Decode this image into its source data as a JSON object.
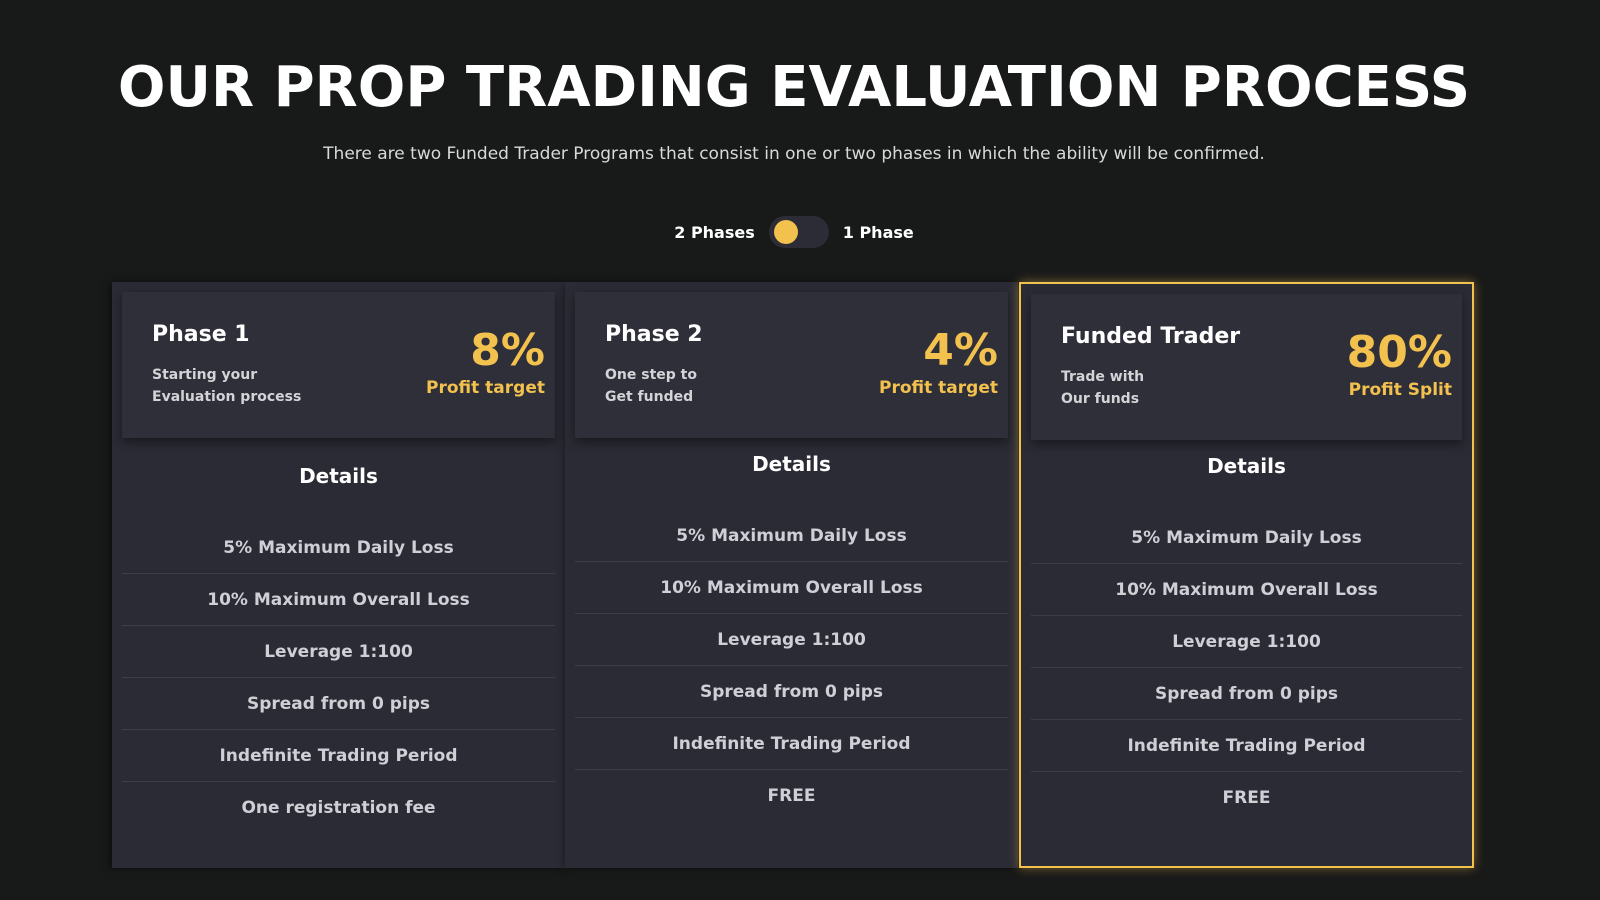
{
  "header": {
    "title": "OUR PROP TRADING EVALUATION PROCESS",
    "subtitle": "There are two Funded Trader Programs that consist in one or two phases in which the ability will be confirmed."
  },
  "toggle": {
    "left_label": "2 Phases",
    "right_label": "1 Phase",
    "selected": "2 Phases"
  },
  "colors": {
    "accent": "#f2c14e",
    "background": "#181919",
    "card": "#2b2b35"
  },
  "cards": [
    {
      "name": "Phase 1",
      "desc_line1": "Starting your",
      "desc_line2": "Evaluation process",
      "value": "8%",
      "metric": "Profit target",
      "details_title": "Details",
      "details": [
        "5% Maximum Daily Loss",
        "10% Maximum Overall Loss",
        "Leverage 1:100",
        "Spread from 0 pips",
        "Indefinite Trading Period",
        "One registration fee"
      ]
    },
    {
      "name": "Phase 2",
      "desc_line1": "One step to",
      "desc_line2": "Get funded",
      "value": "4%",
      "metric": "Profit target",
      "details_title": "Details",
      "details": [
        "5% Maximum Daily Loss",
        "10% Maximum Overall Loss",
        "Leverage 1:100",
        "Spread from 0 pips",
        "Indefinite Trading Period",
        "FREE"
      ]
    },
    {
      "name": "Funded Trader",
      "desc_line1": "Trade with",
      "desc_line2": "Our funds",
      "value": "80%",
      "metric": "Profit Split",
      "details_title": "Details",
      "details": [
        "5% Maximum Daily Loss",
        "10% Maximum Overall Loss",
        "Leverage 1:100",
        "Spread from 0 pips",
        "Indefinite Trading Period",
        "FREE"
      ],
      "highlighted": true
    }
  ]
}
